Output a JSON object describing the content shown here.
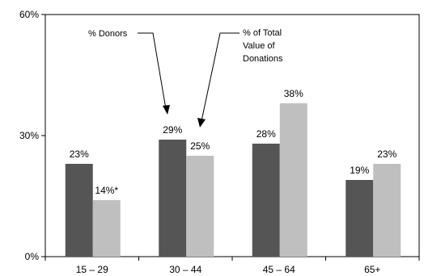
{
  "chart_data": {
    "type": "bar",
    "categories": [
      "15 – 29",
      "30 – 44",
      "45 – 64",
      "65+"
    ],
    "series": [
      {
        "values": [
          23,
          29,
          28,
          19
        ],
        "labels": [
          "23%",
          "29%",
          "28%",
          "19%"
        ],
        "color": "#555555"
      },
      {
        "values": [
          14,
          25,
          38,
          23
        ],
        "labels": [
          "14%*",
          "25%",
          "38%",
          "23%"
        ],
        "color": "#bfbfbf"
      }
    ],
    "ylim": [
      0,
      60
    ],
    "y_ticks": [
      0,
      30,
      60
    ],
    "y_tick_labels": [
      "0%",
      "30%",
      "60%"
    ],
    "grid": false,
    "annotations": [
      {
        "lines": [
          "% Donors"
        ],
        "points_to_series": 0,
        "points_to_category": 1
      },
      {
        "lines": [
          "% of Total",
          "Value of",
          "Donations"
        ],
        "points_to_series": 1,
        "points_to_category": 1
      }
    ]
  }
}
